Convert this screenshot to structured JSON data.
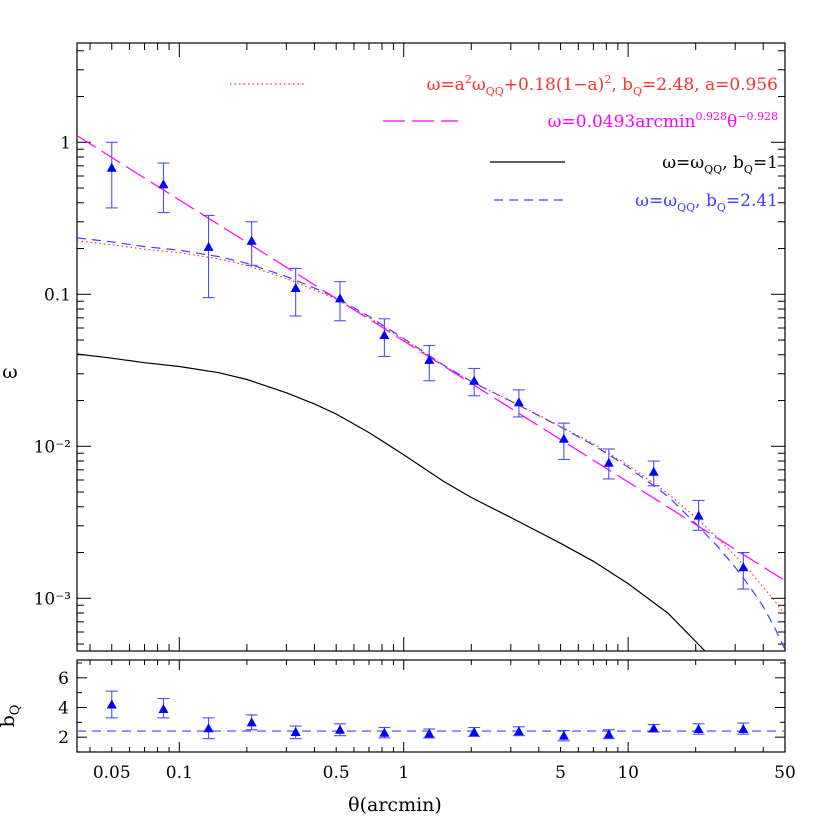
{
  "chart_data": [
    {
      "type": "line",
      "panel": "top",
      "xscale": "log",
      "yscale": "log",
      "xlim": [
        0.035,
        50
      ],
      "ylim": [
        0.00045,
        4.5
      ],
      "ylabel": "ω",
      "xlabel": "",
      "y_ticks": [
        {
          "value": 1,
          "label": "1"
        },
        {
          "value": 0.1,
          "label": "0.1"
        },
        {
          "value": 0.01,
          "label": "10⁻²"
        },
        {
          "value": 0.001,
          "label": "10⁻³"
        }
      ],
      "legend_position": "top-right",
      "legend": [
        {
          "label": "ω=a²ω_QQ+0.18(1−a)², b_Q=2.48, a=0.956",
          "color": "#ff3030",
          "dash": "dotted"
        },
        {
          "label": "ω=0.0493arcmin^0.928 θ^−0.928",
          "color": "#ff00ff",
          "dash": "longdash"
        },
        {
          "label": "ω=ω_QQ, b_Q=1",
          "color": "#000000",
          "dash": "solid"
        },
        {
          "label": "ω=ω_QQ, b_Q=2.41",
          "color": "#4040ff",
          "dash": "dashed"
        }
      ],
      "series": [
        {
          "name": "data",
          "kind": "points",
          "color": "#0000ff",
          "errorbar_color": "#4d4dff",
          "points": [
            {
              "x": 0.05,
              "y": 0.68,
              "lo": 0.37,
              "hi": 1.0
            },
            {
              "x": 0.085,
              "y": 0.53,
              "lo": 0.345,
              "hi": 0.73
            },
            {
              "x": 0.135,
              "y": 0.205,
              "lo": 0.095,
              "hi": 0.33
            },
            {
              "x": 0.21,
              "y": 0.225,
              "lo": 0.155,
              "hi": 0.3
            },
            {
              "x": 0.33,
              "y": 0.11,
              "lo": 0.072,
              "hi": 0.148
            },
            {
              "x": 0.52,
              "y": 0.094,
              "lo": 0.067,
              "hi": 0.121
            },
            {
              "x": 0.82,
              "y": 0.054,
              "lo": 0.039,
              "hi": 0.069
            },
            {
              "x": 1.3,
              "y": 0.037,
              "lo": 0.027,
              "hi": 0.046
            },
            {
              "x": 2.06,
              "y": 0.027,
              "lo": 0.0215,
              "hi": 0.0325
            },
            {
              "x": 3.26,
              "y": 0.0195,
              "lo": 0.0156,
              "hi": 0.0235
            },
            {
              "x": 5.17,
              "y": 0.0112,
              "lo": 0.0082,
              "hi": 0.0142
            },
            {
              "x": 8.2,
              "y": 0.0078,
              "lo": 0.0061,
              "hi": 0.0096
            },
            {
              "x": 13.0,
              "y": 0.0068,
              "lo": 0.0055,
              "hi": 0.008
            },
            {
              "x": 20.6,
              "y": 0.0035,
              "lo": 0.0028,
              "hi": 0.0044
            },
            {
              "x": 32.6,
              "y": 0.0016,
              "lo": 0.00115,
              "hi": 0.002
            }
          ]
        },
        {
          "name": "b_Q=1",
          "kind": "curve",
          "color": "#000000",
          "dash": "solid",
          "x": [
            0.035,
            0.05,
            0.07,
            0.1,
            0.15,
            0.2,
            0.3,
            0.4,
            0.5,
            0.7,
            1.0,
            1.5,
            2.0,
            3.0,
            5.0,
            7.0,
            10.0,
            15.0,
            20.0,
            22.0
          ],
          "y": [
            0.0405,
            0.038,
            0.0355,
            0.0335,
            0.0305,
            0.0275,
            0.0225,
            0.019,
            0.0163,
            0.0123,
            0.0088,
            0.0059,
            0.0046,
            0.0034,
            0.0023,
            0.00175,
            0.00125,
            0.0008,
            0.00052,
            0.00045
          ]
        },
        {
          "name": "b_Q=2.41",
          "kind": "curve",
          "color": "#4040ff",
          "dash": "dashed",
          "x": [
            0.035,
            0.05,
            0.07,
            0.1,
            0.15,
            0.2,
            0.3,
            0.4,
            0.5,
            0.7,
            1.0,
            1.5,
            2.0,
            3.0,
            5.0,
            7.0,
            10.0,
            15.0,
            20.0,
            25.0,
            30.0,
            35.0,
            40.0,
            45.0,
            50.0
          ],
          "y": [
            0.235,
            0.221,
            0.206,
            0.195,
            0.177,
            0.16,
            0.131,
            0.11,
            0.095,
            0.0715,
            0.0512,
            0.0343,
            0.0267,
            0.0198,
            0.0134,
            0.0102,
            0.0073,
            0.0047,
            0.0031,
            0.0022,
            0.0016,
            0.00118,
            0.00088,
            0.00064,
            0.00046
          ]
        },
        {
          "name": "a=0.956",
          "kind": "curve",
          "color": "#ff3030",
          "dash": "dotted",
          "x": [
            0.035,
            0.05,
            0.07,
            0.1,
            0.15,
            0.2,
            0.3,
            0.4,
            0.5,
            0.7,
            1.0,
            1.5,
            2.0,
            3.0,
            5.0,
            7.0,
            10.0,
            15.0,
            20.0,
            25.0,
            30.0,
            35.0,
            40.0,
            45.0,
            50.0
          ],
          "y": [
            0.225,
            0.212,
            0.198,
            0.188,
            0.171,
            0.155,
            0.127,
            0.107,
            0.093,
            0.0703,
            0.0506,
            0.0341,
            0.0266,
            0.0199,
            0.0135,
            0.0104,
            0.0075,
            0.0049,
            0.0034,
            0.0025,
            0.0019,
            0.0015,
            0.00118,
            0.00096,
            0.00078
          ]
        },
        {
          "name": "power law",
          "kind": "function",
          "color": "#ff00ff",
          "dash": "longdash",
          "amplitude": 0.0493,
          "slope": -0.928
        }
      ]
    },
    {
      "type": "scatter",
      "panel": "bottom",
      "xscale": "log",
      "xlim": [
        0.035,
        50
      ],
      "ylim": [
        1,
        7.2
      ],
      "ylabel": "b_Q",
      "xlabel": "θ(arcmin)",
      "x_ticks": [
        {
          "value": 0.05,
          "label": "0.05"
        },
        {
          "value": 0.1,
          "label": "0.1"
        },
        {
          "value": 0.5,
          "label": "0.5"
        },
        {
          "value": 1,
          "label": "1"
        },
        {
          "value": 5,
          "label": "5"
        },
        {
          "value": 10,
          "label": "10"
        },
        {
          "value": 50,
          "label": "50"
        }
      ],
      "y_ticks": [
        {
          "value": 2,
          "label": "2"
        },
        {
          "value": 4,
          "label": "4"
        },
        {
          "value": 6,
          "label": "6"
        }
      ],
      "reference_line": {
        "y": 2.41,
        "color": "#4040ff",
        "dash": "dashed"
      },
      "series": [
        {
          "name": "b_Q",
          "color": "#0000ff",
          "errorbar_color": "#4d4dff",
          "points": [
            {
              "x": 0.05,
              "y": 4.2,
              "lo": 3.3,
              "hi": 5.1
            },
            {
              "x": 0.085,
              "y": 3.9,
              "lo": 3.3,
              "hi": 4.6
            },
            {
              "x": 0.135,
              "y": 2.6,
              "lo": 1.9,
              "hi": 3.3
            },
            {
              "x": 0.21,
              "y": 3.0,
              "lo": 2.5,
              "hi": 3.5
            },
            {
              "x": 0.33,
              "y": 2.35,
              "lo": 1.9,
              "hi": 2.75
            },
            {
              "x": 0.52,
              "y": 2.5,
              "lo": 2.1,
              "hi": 2.9
            },
            {
              "x": 0.82,
              "y": 2.3,
              "lo": 1.95,
              "hi": 2.65
            },
            {
              "x": 1.3,
              "y": 2.25,
              "lo": 1.95,
              "hi": 2.55
            },
            {
              "x": 2.06,
              "y": 2.35,
              "lo": 2.05,
              "hi": 2.65
            },
            {
              "x": 3.26,
              "y": 2.4,
              "lo": 2.1,
              "hi": 2.7
            },
            {
              "x": 5.17,
              "y": 2.1,
              "lo": 1.75,
              "hi": 2.45
            },
            {
              "x": 8.2,
              "y": 2.2,
              "lo": 1.9,
              "hi": 2.5
            },
            {
              "x": 13.0,
              "y": 2.6,
              "lo": 2.35,
              "hi": 2.85
            },
            {
              "x": 20.6,
              "y": 2.55,
              "lo": 2.2,
              "hi": 2.9
            },
            {
              "x": 32.6,
              "y": 2.55,
              "lo": 2.2,
              "hi": 2.95
            }
          ]
        }
      ]
    }
  ]
}
